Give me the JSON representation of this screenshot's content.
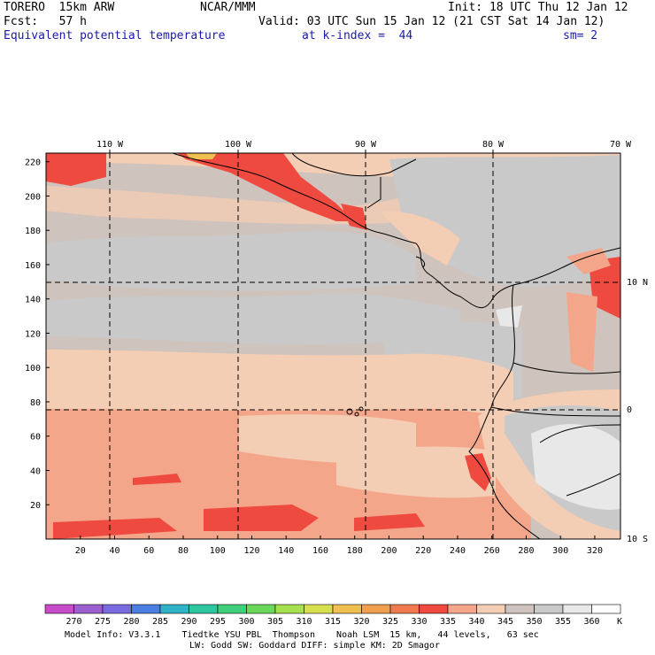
{
  "header": {
    "model": "TORERO  15km ARW",
    "org": "NCAR/MMM",
    "init": "Init: 18 UTC Thu 12 Jan 12",
    "fcst": "Fcst:   57 h",
    "valid": "Valid: 03 UTC Sun 15 Jan 12 (21 CST Sat 14 Jan 12)",
    "field": "Equivalent potential temperature",
    "level": "at k-index =  44",
    "smooth": "sm= 2"
  },
  "map": {
    "lon_labels": [
      "110 W",
      "100 W",
      "90 W",
      "80 W",
      "70 W"
    ],
    "lat_labels": [
      "10 N",
      "0",
      "10 S"
    ],
    "y_ticks": [
      "220",
      "200",
      "180",
      "160",
      "140",
      "120",
      "100",
      "80",
      "60",
      "40",
      "20"
    ],
    "x_ticks": [
      "20",
      "40",
      "60",
      "80",
      "100",
      "120",
      "140",
      "160",
      "180",
      "200",
      "220",
      "240",
      "260",
      "280",
      "300",
      "320"
    ]
  },
  "colorbar": {
    "labels": [
      "270",
      "275",
      "280",
      "285",
      "290",
      "295",
      "300",
      "305",
      "310",
      "315",
      "320",
      "325",
      "330",
      "335",
      "340",
      "345",
      "350",
      "355",
      "360"
    ],
    "unit": "K",
    "colors": [
      "#c84bc8",
      "#9b5fd0",
      "#7a6be0",
      "#4a7ee0",
      "#2fb3c8",
      "#2ec7a0",
      "#3ed07a",
      "#6ad85a",
      "#a8e050",
      "#d8e050",
      "#f0c050",
      "#f0a050",
      "#f07a50",
      "#ee4a3f",
      "#f4a68a",
      "#f3cdb4",
      "#cfc3bd",
      "#c9c9c9",
      "#e8e8e8",
      "#ffffff"
    ]
  },
  "footer": {
    "line1": "Model Info: V3.3.1    Tiedtke YSU PBL  Thompson    Noah LSM  15 km,   44 levels,   63 sec",
    "line2": "LW: Godd SW: Goddard DIFF: simple KM: 2D Smagor"
  }
}
